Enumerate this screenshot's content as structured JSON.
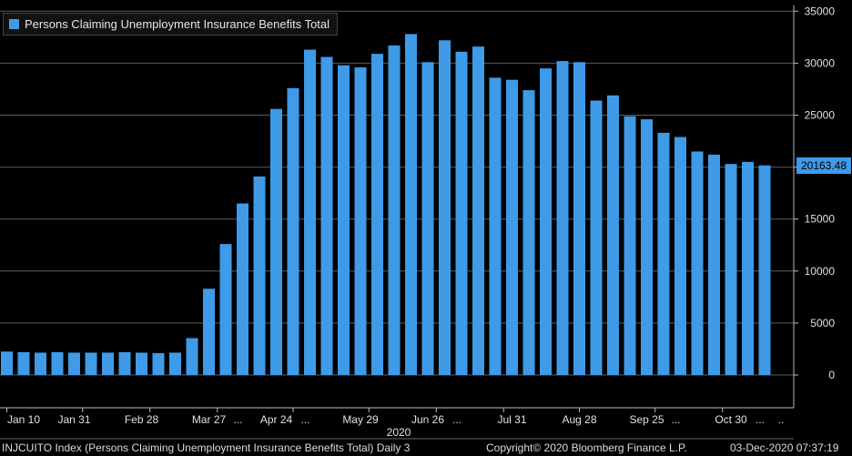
{
  "legend": {
    "label": "Persons Claiming Unemployment Insurance Benefits Total",
    "color": "#3f9ae8"
  },
  "last_value_badge": "20163.48",
  "footer": {
    "ticker": "INJCUITO Index (Persons Claiming Unemployment Insurance Benefits Total)  Daily 3",
    "copyright": "Copyright© 2020 Bloomberg Finance L.P.",
    "timestamp": "03-Dec-2020 07:37:19"
  },
  "chart_data": {
    "type": "bar",
    "title": "",
    "xlabel": "2020",
    "ylabel": "",
    "ylim": [
      -3000,
      35500
    ],
    "yticks": [
      0,
      5000,
      10000,
      15000,
      20000,
      25000,
      30000,
      35000
    ],
    "ytick_labels": [
      "0",
      "5000",
      "10000",
      "15000",
      "20000",
      "25000",
      "30000",
      "35000"
    ],
    "x_tick_labels": [
      {
        "bar_index": 1,
        "label": "Jan 10"
      },
      {
        "bar_index": 4,
        "label": "Jan 31"
      },
      {
        "bar_index": 8,
        "label": "Feb 28"
      },
      {
        "bar_index": 12,
        "label": "Mar 27"
      },
      {
        "bar_index": 16,
        "label": "Apr 24"
      },
      {
        "bar_index": 21,
        "label": "May 29"
      },
      {
        "bar_index": 25,
        "label": "Jun 26"
      },
      {
        "bar_index": 30,
        "label": "Jul 31"
      },
      {
        "bar_index": 34,
        "label": "Aug 28"
      },
      {
        "bar_index": 38,
        "label": "Sep 25"
      },
      {
        "bar_index": 43,
        "label": "Oct 30"
      }
    ],
    "x_ellipsis_after": [
      12,
      16,
      25,
      38,
      43
    ],
    "series": [
      {
        "name": "Persons Claiming Unemployment Insurance Benefits Total",
        "color": "#3f9ae8",
        "values": [
          2250,
          2200,
          2150,
          2200,
          2150,
          2150,
          2150,
          2200,
          2150,
          2100,
          2150,
          3550,
          8300,
          12600,
          16500,
          19100,
          25600,
          27600,
          31300,
          30600,
          29800,
          29600,
          30900,
          31700,
          32800,
          30100,
          32200,
          31100,
          31600,
          28600,
          28400,
          27400,
          29500,
          30200,
          30100,
          26400,
          26900,
          24900,
          24600,
          23300,
          22900,
          21500,
          21200,
          20300,
          20500,
          20163.48
        ]
      }
    ],
    "grid": true,
    "legend_position": "top-left"
  }
}
